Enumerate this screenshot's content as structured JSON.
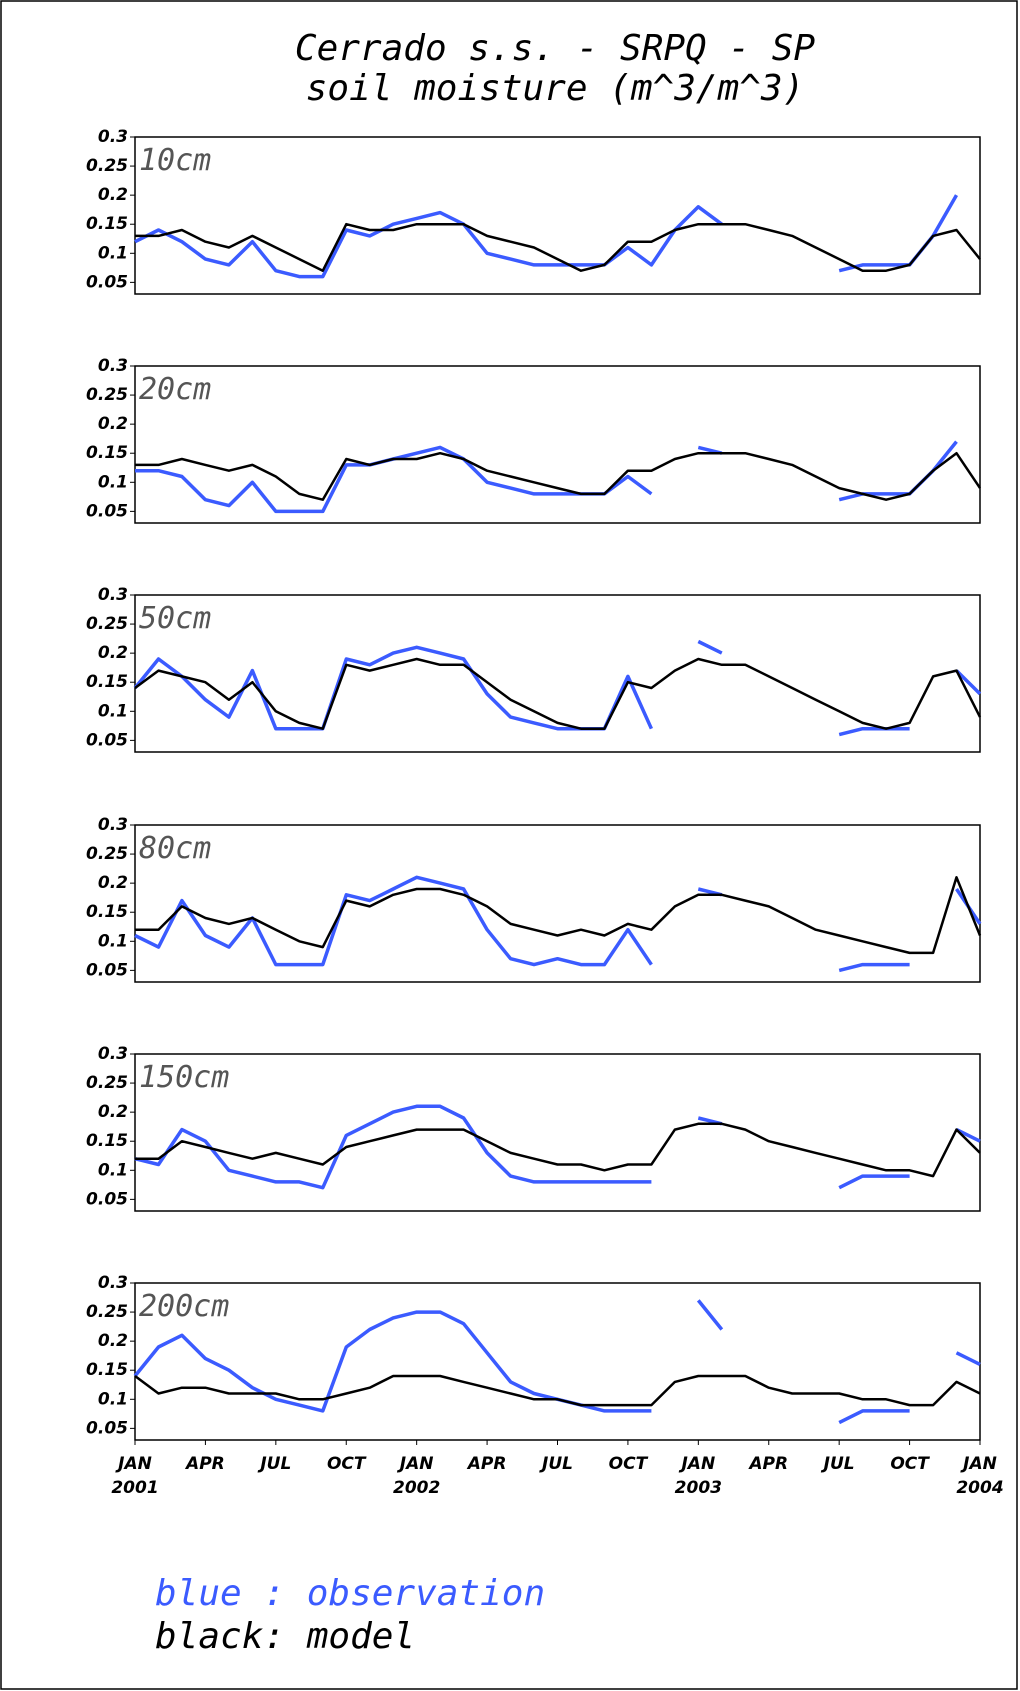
{
  "title": "Cerrado s.s. - SRPQ - SP",
  "subtitle": "soil moisture (m^3/m^3)",
  "legend": [
    "blue : observation",
    "black: model"
  ],
  "chart_data": [
    {
      "type": "line",
      "title": "10cm",
      "xlim": [
        0,
        36
      ],
      "ylim": [
        0.03,
        0.3
      ],
      "yticks": [
        0.05,
        0.1,
        0.15,
        0.2,
        0.25,
        0.3
      ],
      "x": [
        0,
        1,
        2,
        3,
        4,
        5,
        6,
        7,
        8,
        9,
        10,
        11,
        12,
        13,
        14,
        15,
        16,
        17,
        18,
        19,
        20,
        21,
        22,
        23,
        24,
        25,
        26,
        27,
        28,
        29,
        30,
        31,
        32,
        33,
        34,
        35,
        36
      ],
      "series": [
        {
          "name": "observation",
          "color": "#3b5bff",
          "values": [
            0.12,
            0.14,
            0.12,
            0.09,
            0.08,
            0.12,
            0.07,
            0.06,
            0.06,
            0.14,
            0.13,
            0.15,
            0.16,
            0.17,
            0.15,
            0.1,
            0.09,
            0.08,
            0.08,
            0.08,
            0.08,
            0.11,
            0.08,
            0.14,
            0.18,
            0.15,
            null,
            null,
            null,
            null,
            0.07,
            0.08,
            0.08,
            0.08,
            0.13,
            0.2,
            null
          ]
        },
        {
          "name": "model",
          "color": "#000000",
          "values": [
            0.13,
            0.13,
            0.14,
            0.12,
            0.11,
            0.13,
            0.11,
            0.09,
            0.07,
            0.15,
            0.14,
            0.14,
            0.15,
            0.15,
            0.15,
            0.13,
            0.12,
            0.11,
            0.09,
            0.07,
            0.08,
            0.12,
            0.12,
            0.14,
            0.15,
            0.15,
            0.15,
            0.14,
            0.13,
            0.11,
            0.09,
            0.07,
            0.07,
            0.08,
            0.13,
            0.14,
            0.09
          ]
        }
      ]
    },
    {
      "type": "line",
      "title": "20cm",
      "xlim": [
        0,
        36
      ],
      "ylim": [
        0.03,
        0.3
      ],
      "yticks": [
        0.05,
        0.1,
        0.15,
        0.2,
        0.25,
        0.3
      ],
      "x": [
        0,
        1,
        2,
        3,
        4,
        5,
        6,
        7,
        8,
        9,
        10,
        11,
        12,
        13,
        14,
        15,
        16,
        17,
        18,
        19,
        20,
        21,
        22,
        23,
        24,
        25,
        26,
        27,
        28,
        29,
        30,
        31,
        32,
        33,
        34,
        35,
        36
      ],
      "series": [
        {
          "name": "observation",
          "color": "#3b5bff",
          "values": [
            0.12,
            0.12,
            0.11,
            0.07,
            0.06,
            0.1,
            0.05,
            0.05,
            0.05,
            0.13,
            0.13,
            0.14,
            0.15,
            0.16,
            0.14,
            0.1,
            0.09,
            0.08,
            0.08,
            0.08,
            0.08,
            0.11,
            0.08,
            null,
            0.16,
            0.15,
            null,
            null,
            null,
            null,
            0.07,
            0.08,
            0.08,
            0.08,
            0.12,
            0.17,
            null
          ]
        },
        {
          "name": "model",
          "color": "#000000",
          "values": [
            0.13,
            0.13,
            0.14,
            0.13,
            0.12,
            0.13,
            0.11,
            0.08,
            0.07,
            0.14,
            0.13,
            0.14,
            0.14,
            0.15,
            0.14,
            0.12,
            0.11,
            0.1,
            0.09,
            0.08,
            0.08,
            0.12,
            0.12,
            0.14,
            0.15,
            0.15,
            0.15,
            0.14,
            0.13,
            0.11,
            0.09,
            0.08,
            0.07,
            0.08,
            0.12,
            0.15,
            0.09
          ]
        }
      ]
    },
    {
      "type": "line",
      "title": "50cm",
      "xlim": [
        0,
        36
      ],
      "ylim": [
        0.03,
        0.3
      ],
      "yticks": [
        0.05,
        0.1,
        0.15,
        0.2,
        0.25,
        0.3
      ],
      "x": [
        0,
        1,
        2,
        3,
        4,
        5,
        6,
        7,
        8,
        9,
        10,
        11,
        12,
        13,
        14,
        15,
        16,
        17,
        18,
        19,
        20,
        21,
        22,
        23,
        24,
        25,
        26,
        27,
        28,
        29,
        30,
        31,
        32,
        33,
        34,
        35,
        36
      ],
      "series": [
        {
          "name": "observation",
          "color": "#3b5bff",
          "values": [
            0.14,
            0.19,
            0.16,
            0.12,
            0.09,
            0.17,
            0.07,
            0.07,
            0.07,
            0.19,
            0.18,
            0.2,
            0.21,
            0.2,
            0.19,
            0.13,
            0.09,
            0.08,
            0.07,
            0.07,
            0.07,
            0.16,
            0.07,
            null,
            0.22,
            0.2,
            null,
            null,
            null,
            null,
            0.06,
            0.07,
            0.07,
            0.07,
            null,
            0.17,
            0.13
          ]
        },
        {
          "name": "model",
          "color": "#000000",
          "values": [
            0.14,
            0.17,
            0.16,
            0.15,
            0.12,
            0.15,
            0.1,
            0.08,
            0.07,
            0.18,
            0.17,
            0.18,
            0.19,
            0.18,
            0.18,
            0.15,
            0.12,
            0.1,
            0.08,
            0.07,
            0.07,
            0.15,
            0.14,
            0.17,
            0.19,
            0.18,
            0.18,
            0.16,
            0.14,
            0.12,
            0.1,
            0.08,
            0.07,
            0.08,
            0.16,
            0.17,
            0.09
          ]
        }
      ]
    },
    {
      "type": "line",
      "title": "80cm",
      "xlim": [
        0,
        36
      ],
      "ylim": [
        0.03,
        0.3
      ],
      "yticks": [
        0.05,
        0.1,
        0.15,
        0.2,
        0.25,
        0.3
      ],
      "x": [
        0,
        1,
        2,
        3,
        4,
        5,
        6,
        7,
        8,
        9,
        10,
        11,
        12,
        13,
        14,
        15,
        16,
        17,
        18,
        19,
        20,
        21,
        22,
        23,
        24,
        25,
        26,
        27,
        28,
        29,
        30,
        31,
        32,
        33,
        34,
        35,
        36
      ],
      "series": [
        {
          "name": "observation",
          "color": "#3b5bff",
          "values": [
            0.11,
            0.09,
            0.17,
            0.11,
            0.09,
            0.14,
            0.06,
            0.06,
            0.06,
            0.18,
            0.17,
            0.19,
            0.21,
            0.2,
            0.19,
            0.12,
            0.07,
            0.06,
            0.07,
            0.06,
            0.06,
            0.12,
            0.06,
            null,
            0.19,
            0.18,
            null,
            null,
            null,
            null,
            0.05,
            0.06,
            0.06,
            0.06,
            null,
            0.19,
            0.13
          ]
        },
        {
          "name": "model",
          "color": "#000000",
          "values": [
            0.12,
            0.12,
            0.16,
            0.14,
            0.13,
            0.14,
            0.12,
            0.1,
            0.09,
            0.17,
            0.16,
            0.18,
            0.19,
            0.19,
            0.18,
            0.16,
            0.13,
            0.12,
            0.11,
            0.12,
            0.11,
            0.13,
            0.12,
            0.16,
            0.18,
            0.18,
            0.17,
            0.16,
            0.14,
            0.12,
            0.11,
            0.1,
            0.09,
            0.08,
            0.08,
            0.21,
            0.11
          ]
        }
      ]
    },
    {
      "type": "line",
      "title": "150cm",
      "xlim": [
        0,
        36
      ],
      "ylim": [
        0.03,
        0.3
      ],
      "yticks": [
        0.05,
        0.1,
        0.15,
        0.2,
        0.25,
        0.3
      ],
      "x": [
        0,
        1,
        2,
        3,
        4,
        5,
        6,
        7,
        8,
        9,
        10,
        11,
        12,
        13,
        14,
        15,
        16,
        17,
        18,
        19,
        20,
        21,
        22,
        23,
        24,
        25,
        26,
        27,
        28,
        29,
        30,
        31,
        32,
        33,
        34,
        35,
        36
      ],
      "series": [
        {
          "name": "observation",
          "color": "#3b5bff",
          "values": [
            0.12,
            0.11,
            0.17,
            0.15,
            0.1,
            0.09,
            0.08,
            0.08,
            0.07,
            0.16,
            0.18,
            0.2,
            0.21,
            0.21,
            0.19,
            0.13,
            0.09,
            0.08,
            0.08,
            0.08,
            0.08,
            0.08,
            0.08,
            null,
            0.19,
            0.18,
            null,
            null,
            null,
            null,
            0.07,
            0.09,
            0.09,
            0.09,
            null,
            0.17,
            0.15
          ]
        },
        {
          "name": "model",
          "color": "#000000",
          "values": [
            0.12,
            0.12,
            0.15,
            0.14,
            0.13,
            0.12,
            0.13,
            0.12,
            0.11,
            0.14,
            0.15,
            0.16,
            0.17,
            0.17,
            0.17,
            0.15,
            0.13,
            0.12,
            0.11,
            0.11,
            0.1,
            0.11,
            0.11,
            0.17,
            0.18,
            0.18,
            0.17,
            0.15,
            0.14,
            0.13,
            0.12,
            0.11,
            0.1,
            0.1,
            0.09,
            0.17,
            0.13
          ]
        }
      ]
    },
    {
      "type": "line",
      "title": "200cm",
      "xlim": [
        0,
        36
      ],
      "ylim": [
        0.03,
        0.3
      ],
      "yticks": [
        0.05,
        0.1,
        0.15,
        0.2,
        0.25,
        0.3
      ],
      "xticks": [
        {
          "value": 0,
          "label": "JAN"
        },
        {
          "value": 3,
          "label": "APR"
        },
        {
          "value": 6,
          "label": "JUL"
        },
        {
          "value": 9,
          "label": "OCT"
        },
        {
          "value": 12,
          "label": "JAN"
        },
        {
          "value": 15,
          "label": "APR"
        },
        {
          "value": 18,
          "label": "JUL"
        },
        {
          "value": 21,
          "label": "OCT"
        },
        {
          "value": 24,
          "label": "JAN"
        },
        {
          "value": 27,
          "label": "APR"
        },
        {
          "value": 30,
          "label": "JUL"
        },
        {
          "value": 33,
          "label": "OCT"
        },
        {
          "value": 36,
          "label": "JAN"
        }
      ],
      "xtick_years": [
        {
          "value": 0,
          "label": "2001"
        },
        {
          "value": 12,
          "label": "2002"
        },
        {
          "value": 24,
          "label": "2003"
        },
        {
          "value": 36,
          "label": "2004"
        }
      ],
      "x": [
        0,
        1,
        2,
        3,
        4,
        5,
        6,
        7,
        8,
        9,
        10,
        11,
        12,
        13,
        14,
        15,
        16,
        17,
        18,
        19,
        20,
        21,
        22,
        23,
        24,
        25,
        26,
        27,
        28,
        29,
        30,
        31,
        32,
        33,
        34,
        35,
        36
      ],
      "series": [
        {
          "name": "observation",
          "color": "#3b5bff",
          "values": [
            0.14,
            0.19,
            0.21,
            0.17,
            0.15,
            0.12,
            0.1,
            0.09,
            0.08,
            0.19,
            0.22,
            0.24,
            0.25,
            0.25,
            0.23,
            0.18,
            0.13,
            0.11,
            0.1,
            0.09,
            0.08,
            0.08,
            0.08,
            null,
            0.27,
            0.22,
            null,
            null,
            null,
            null,
            0.06,
            0.08,
            0.08,
            0.08,
            null,
            0.18,
            0.16
          ]
        },
        {
          "name": "model",
          "color": "#000000",
          "values": [
            0.14,
            0.11,
            0.12,
            0.12,
            0.11,
            0.11,
            0.11,
            0.1,
            0.1,
            0.11,
            0.12,
            0.14,
            0.14,
            0.14,
            0.13,
            0.12,
            0.11,
            0.1,
            0.1,
            0.09,
            0.09,
            0.09,
            0.09,
            0.13,
            0.14,
            0.14,
            0.14,
            0.12,
            0.11,
            0.11,
            0.11,
            0.1,
            0.1,
            0.09,
            0.09,
            0.13,
            0.11
          ]
        }
      ]
    }
  ]
}
